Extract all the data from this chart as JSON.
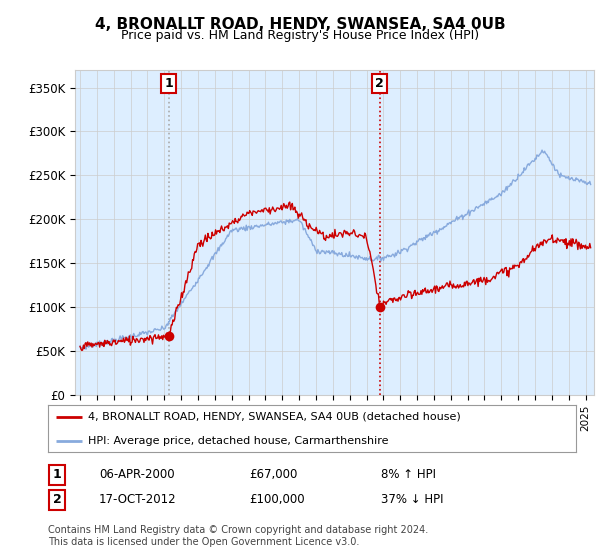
{
  "title": "4, BRONALLT ROAD, HENDY, SWANSEA, SA4 0UB",
  "subtitle": "Price paid vs. HM Land Registry's House Price Index (HPI)",
  "background_color": "#ffffff",
  "plot_background_color": "#ddeeff",
  "sale1_price": 67000,
  "sale1_display": "06-APR-2000",
  "sale1_hpi_pct": "8% ↑ HPI",
  "sale1_x": 2000.27,
  "sale2_price": 100000,
  "sale2_display": "17-OCT-2012",
  "sale2_hpi_pct": "37% ↓ HPI",
  "sale2_x": 2012.79,
  "ylabel_ticks": [
    "£0",
    "£50K",
    "£100K",
    "£150K",
    "£200K",
    "£250K",
    "£300K",
    "£350K"
  ],
  "ytick_values": [
    0,
    50000,
    100000,
    150000,
    200000,
    250000,
    300000,
    350000
  ],
  "ylim": [
    0,
    370000
  ],
  "xlim_start": 1994.7,
  "xlim_end": 2025.5,
  "red_line_color": "#cc0000",
  "blue_line_color": "#88aadd",
  "legend_label_red": "4, BRONALLT ROAD, HENDY, SWANSEA, SA4 0UB (detached house)",
  "legend_label_blue": "HPI: Average price, detached house, Carmarthenshire",
  "footer_text": "Contains HM Land Registry data © Crown copyright and database right 2024.\nThis data is licensed under the Open Government Licence v3.0.",
  "grid_color": "#cccccc",
  "sale1_vline_color": "#aaaaaa",
  "sale2_vline_color": "#cc0000"
}
